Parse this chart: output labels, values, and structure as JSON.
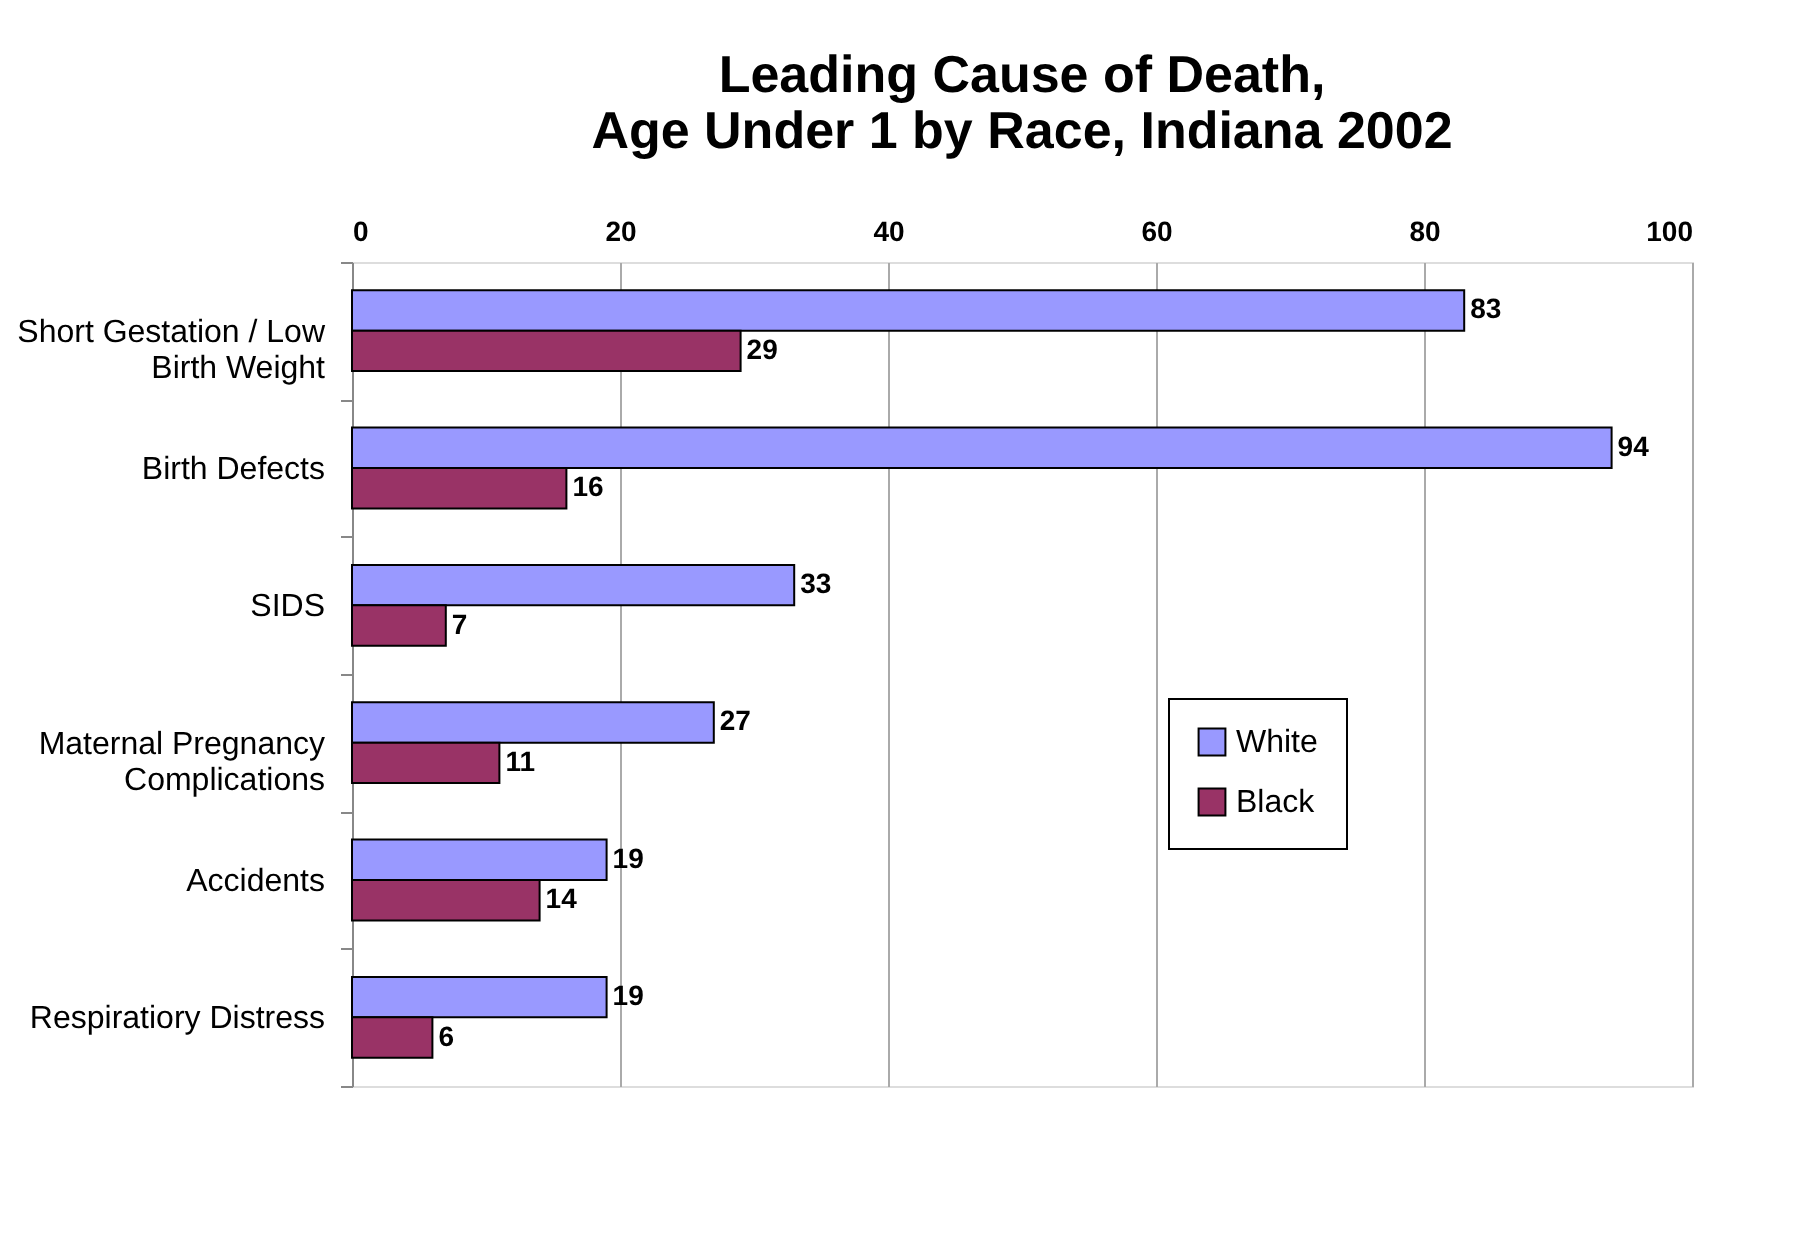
{
  "chart_data": {
    "type": "bar",
    "orientation": "horizontal",
    "title": "Leading Cause of Death, Age Under 1 by Race, Indiana 2002",
    "categories": [
      "Short Gestation / Low Birth Weight",
      "Birth Defects",
      "SIDS",
      "Maternal Pregnancy Complications",
      "Accidents",
      "Respiratiory Distress"
    ],
    "series": [
      {
        "name": "White",
        "color": "#9999ff",
        "values": [
          83,
          94,
          33,
          27,
          19,
          19
        ]
      },
      {
        "name": "Black",
        "color": "#993366",
        "values": [
          29,
          16,
          7,
          11,
          14,
          6
        ]
      }
    ],
    "xlim": [
      0,
      100
    ],
    "xticks": [
      0,
      20,
      40,
      60,
      80,
      100
    ],
    "grid": "x",
    "legend": "right",
    "data_labels": true
  }
}
